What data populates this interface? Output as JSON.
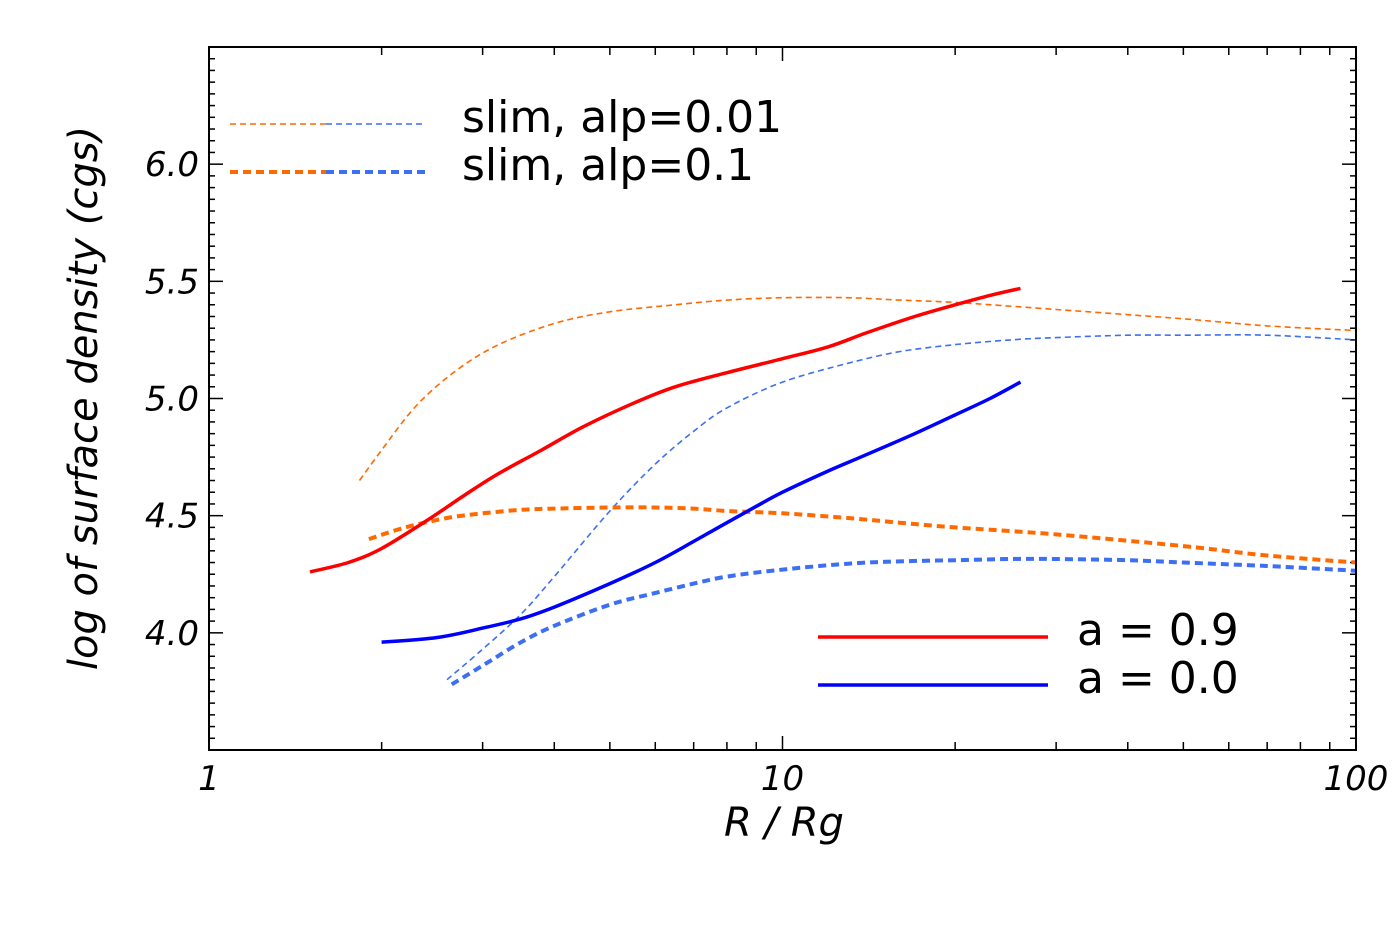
{
  "chart_data": {
    "type": "line",
    "xlabel": "R / Rg",
    "ylabel": "log of surface density (cgs)",
    "xscale": "log",
    "xlim": [
      1,
      100
    ],
    "ylim": [
      3.5,
      6.5
    ],
    "xticks": [
      {
        "value": 1,
        "label": "1"
      },
      {
        "value": 10,
        "label": "10"
      },
      {
        "value": 100,
        "label": "100"
      }
    ],
    "yticks": [
      {
        "value": 4.0,
        "label": "4.0"
      },
      {
        "value": 4.5,
        "label": "4.5"
      },
      {
        "value": 5.0,
        "label": "5.0"
      },
      {
        "value": 5.5,
        "label": "5.5"
      },
      {
        "value": 6.0,
        "label": "6.0"
      }
    ],
    "series": [
      {
        "name": "slim alp=0.01 a=0.9",
        "color": "#ff6a00",
        "style": "dashed-thin",
        "x": [
          1.83,
          2.0,
          2.3,
          2.7,
          3.2,
          4.0,
          5.0,
          6.5,
          8.0,
          10,
          13,
          16,
          20,
          30,
          50,
          70,
          100
        ],
        "y": [
          4.65,
          4.78,
          4.97,
          5.12,
          5.23,
          5.32,
          5.37,
          5.4,
          5.42,
          5.43,
          5.43,
          5.42,
          5.41,
          5.38,
          5.34,
          5.31,
          5.29
        ]
      },
      {
        "name": "slim alp=0.01 a=0.0",
        "color": "#3d6ff2",
        "style": "dashed-thin",
        "x": [
          2.6,
          3.0,
          3.5,
          4.0,
          5.0,
          6.0,
          7.0,
          8.0,
          10,
          13,
          16,
          20,
          25,
          30,
          40,
          50,
          70,
          100
        ],
        "y": [
          3.8,
          3.93,
          4.08,
          4.24,
          4.52,
          4.72,
          4.86,
          4.96,
          5.07,
          5.15,
          5.2,
          5.23,
          5.25,
          5.26,
          5.27,
          5.27,
          5.27,
          5.25
        ]
      },
      {
        "name": "slim alp=0.1 a=0.9",
        "color": "#ff6a00",
        "style": "dashed-thick",
        "x": [
          1.9,
          2.2,
          2.6,
          3.0,
          3.5,
          4.0,
          5.0,
          6.0,
          7.0,
          8.0,
          10,
          13,
          16,
          20,
          30,
          50,
          70,
          100
        ],
        "y": [
          4.4,
          4.45,
          4.49,
          4.51,
          4.525,
          4.53,
          4.535,
          4.535,
          4.53,
          4.52,
          4.51,
          4.49,
          4.47,
          4.45,
          4.42,
          4.37,
          4.33,
          4.3
        ]
      },
      {
        "name": "slim alp=0.1 a=0.0",
        "color": "#3d6ff2",
        "style": "dashed-thick",
        "x": [
          2.65,
          3.0,
          3.5,
          4.0,
          5.0,
          6.0,
          7.0,
          8.0,
          10,
          13,
          16,
          20,
          25,
          30,
          40,
          50,
          70,
          100
        ],
        "y": [
          3.78,
          3.86,
          3.96,
          4.03,
          4.12,
          4.17,
          4.21,
          4.24,
          4.27,
          4.295,
          4.305,
          4.31,
          4.315,
          4.315,
          4.31,
          4.3,
          4.285,
          4.265
        ]
      },
      {
        "name": "a = 0.9",
        "color": "#ff0000",
        "style": "solid",
        "x": [
          1.5,
          1.75,
          2.0,
          2.4,
          2.8,
          3.2,
          3.8,
          4.5,
          5.5,
          6.5,
          8.0,
          10,
          12,
          14,
          17,
          20,
          23,
          26
        ],
        "y": [
          4.26,
          4.3,
          4.36,
          4.48,
          4.59,
          4.68,
          4.78,
          4.88,
          4.98,
          5.05,
          5.11,
          5.17,
          5.22,
          5.28,
          5.35,
          5.4,
          5.44,
          5.47
        ]
      },
      {
        "name": "a = 0.0",
        "color": "#0000ff",
        "style": "solid",
        "x": [
          2.0,
          2.5,
          3.0,
          3.5,
          4.0,
          5.0,
          6.0,
          7.0,
          8.0,
          9.0,
          10,
          12,
          14,
          17,
          20,
          23,
          26
        ],
        "y": [
          3.96,
          3.98,
          4.02,
          4.06,
          4.11,
          4.21,
          4.3,
          4.39,
          4.47,
          4.54,
          4.6,
          4.69,
          4.76,
          4.85,
          4.93,
          5.0,
          5.07
        ]
      }
    ],
    "legend_top": [
      {
        "label": "slim, alp=0.01",
        "style": "dashed-thin",
        "colors": [
          "#ff6a00",
          "#3d6ff2"
        ]
      },
      {
        "label": "slim, alp=0.1",
        "style": "dashed-thick",
        "colors": [
          "#ff6a00",
          "#3d6ff2"
        ]
      }
    ],
    "legend_bottom": [
      {
        "label": "a = 0.9",
        "color": "#ff0000"
      },
      {
        "label": "a = 0.0",
        "color": "#0000ff"
      }
    ],
    "legend_placement": {
      "top": "top-left",
      "bottom": "bottom-right"
    }
  }
}
